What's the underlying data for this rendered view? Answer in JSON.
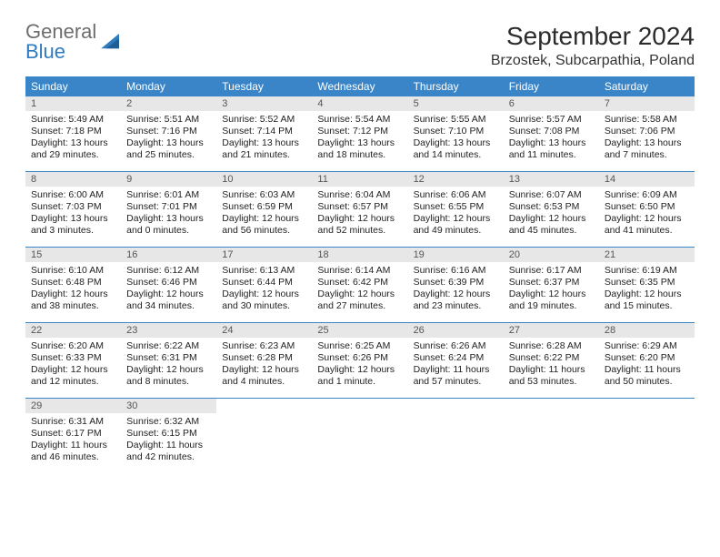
{
  "logo": {
    "text1": "General",
    "text2": "Blue"
  },
  "title": "September 2024",
  "location": "Brzostek, Subcarpathia, Poland",
  "colors": {
    "header_bg": "#3a85c7",
    "header_text": "#ffffff",
    "daynum_bg": "#e7e7e7",
    "daynum_text": "#555555",
    "body_text": "#222222",
    "rule": "#3a85c7"
  },
  "dow": [
    "Sunday",
    "Monday",
    "Tuesday",
    "Wednesday",
    "Thursday",
    "Friday",
    "Saturday"
  ],
  "days": [
    {
      "n": "1",
      "sunrise": "5:49 AM",
      "sunset": "7:18 PM",
      "daylight": "13 hours and 29 minutes."
    },
    {
      "n": "2",
      "sunrise": "5:51 AM",
      "sunset": "7:16 PM",
      "daylight": "13 hours and 25 minutes."
    },
    {
      "n": "3",
      "sunrise": "5:52 AM",
      "sunset": "7:14 PM",
      "daylight": "13 hours and 21 minutes."
    },
    {
      "n": "4",
      "sunrise": "5:54 AM",
      "sunset": "7:12 PM",
      "daylight": "13 hours and 18 minutes."
    },
    {
      "n": "5",
      "sunrise": "5:55 AM",
      "sunset": "7:10 PM",
      "daylight": "13 hours and 14 minutes."
    },
    {
      "n": "6",
      "sunrise": "5:57 AM",
      "sunset": "7:08 PM",
      "daylight": "13 hours and 11 minutes."
    },
    {
      "n": "7",
      "sunrise": "5:58 AM",
      "sunset": "7:06 PM",
      "daylight": "13 hours and 7 minutes."
    },
    {
      "n": "8",
      "sunrise": "6:00 AM",
      "sunset": "7:03 PM",
      "daylight": "13 hours and 3 minutes."
    },
    {
      "n": "9",
      "sunrise": "6:01 AM",
      "sunset": "7:01 PM",
      "daylight": "13 hours and 0 minutes."
    },
    {
      "n": "10",
      "sunrise": "6:03 AM",
      "sunset": "6:59 PM",
      "daylight": "12 hours and 56 minutes."
    },
    {
      "n": "11",
      "sunrise": "6:04 AM",
      "sunset": "6:57 PM",
      "daylight": "12 hours and 52 minutes."
    },
    {
      "n": "12",
      "sunrise": "6:06 AM",
      "sunset": "6:55 PM",
      "daylight": "12 hours and 49 minutes."
    },
    {
      "n": "13",
      "sunrise": "6:07 AM",
      "sunset": "6:53 PM",
      "daylight": "12 hours and 45 minutes."
    },
    {
      "n": "14",
      "sunrise": "6:09 AM",
      "sunset": "6:50 PM",
      "daylight": "12 hours and 41 minutes."
    },
    {
      "n": "15",
      "sunrise": "6:10 AM",
      "sunset": "6:48 PM",
      "daylight": "12 hours and 38 minutes."
    },
    {
      "n": "16",
      "sunrise": "6:12 AM",
      "sunset": "6:46 PM",
      "daylight": "12 hours and 34 minutes."
    },
    {
      "n": "17",
      "sunrise": "6:13 AM",
      "sunset": "6:44 PM",
      "daylight": "12 hours and 30 minutes."
    },
    {
      "n": "18",
      "sunrise": "6:14 AM",
      "sunset": "6:42 PM",
      "daylight": "12 hours and 27 minutes."
    },
    {
      "n": "19",
      "sunrise": "6:16 AM",
      "sunset": "6:39 PM",
      "daylight": "12 hours and 23 minutes."
    },
    {
      "n": "20",
      "sunrise": "6:17 AM",
      "sunset": "6:37 PM",
      "daylight": "12 hours and 19 minutes."
    },
    {
      "n": "21",
      "sunrise": "6:19 AM",
      "sunset": "6:35 PM",
      "daylight": "12 hours and 15 minutes."
    },
    {
      "n": "22",
      "sunrise": "6:20 AM",
      "sunset": "6:33 PM",
      "daylight": "12 hours and 12 minutes."
    },
    {
      "n": "23",
      "sunrise": "6:22 AM",
      "sunset": "6:31 PM",
      "daylight": "12 hours and 8 minutes."
    },
    {
      "n": "24",
      "sunrise": "6:23 AM",
      "sunset": "6:28 PM",
      "daylight": "12 hours and 4 minutes."
    },
    {
      "n": "25",
      "sunrise": "6:25 AM",
      "sunset": "6:26 PM",
      "daylight": "12 hours and 1 minute."
    },
    {
      "n": "26",
      "sunrise": "6:26 AM",
      "sunset": "6:24 PM",
      "daylight": "11 hours and 57 minutes."
    },
    {
      "n": "27",
      "sunrise": "6:28 AM",
      "sunset": "6:22 PM",
      "daylight": "11 hours and 53 minutes."
    },
    {
      "n": "28",
      "sunrise": "6:29 AM",
      "sunset": "6:20 PM",
      "daylight": "11 hours and 50 minutes."
    },
    {
      "n": "29",
      "sunrise": "6:31 AM",
      "sunset": "6:17 PM",
      "daylight": "11 hours and 46 minutes."
    },
    {
      "n": "30",
      "sunrise": "6:32 AM",
      "sunset": "6:15 PM",
      "daylight": "11 hours and 42 minutes."
    }
  ],
  "labels": {
    "sunrise_prefix": "Sunrise: ",
    "sunset_prefix": "Sunset: ",
    "daylight_prefix": "Daylight: "
  },
  "layout": {
    "start_dow_index": 0,
    "trailing_empty": 5
  }
}
